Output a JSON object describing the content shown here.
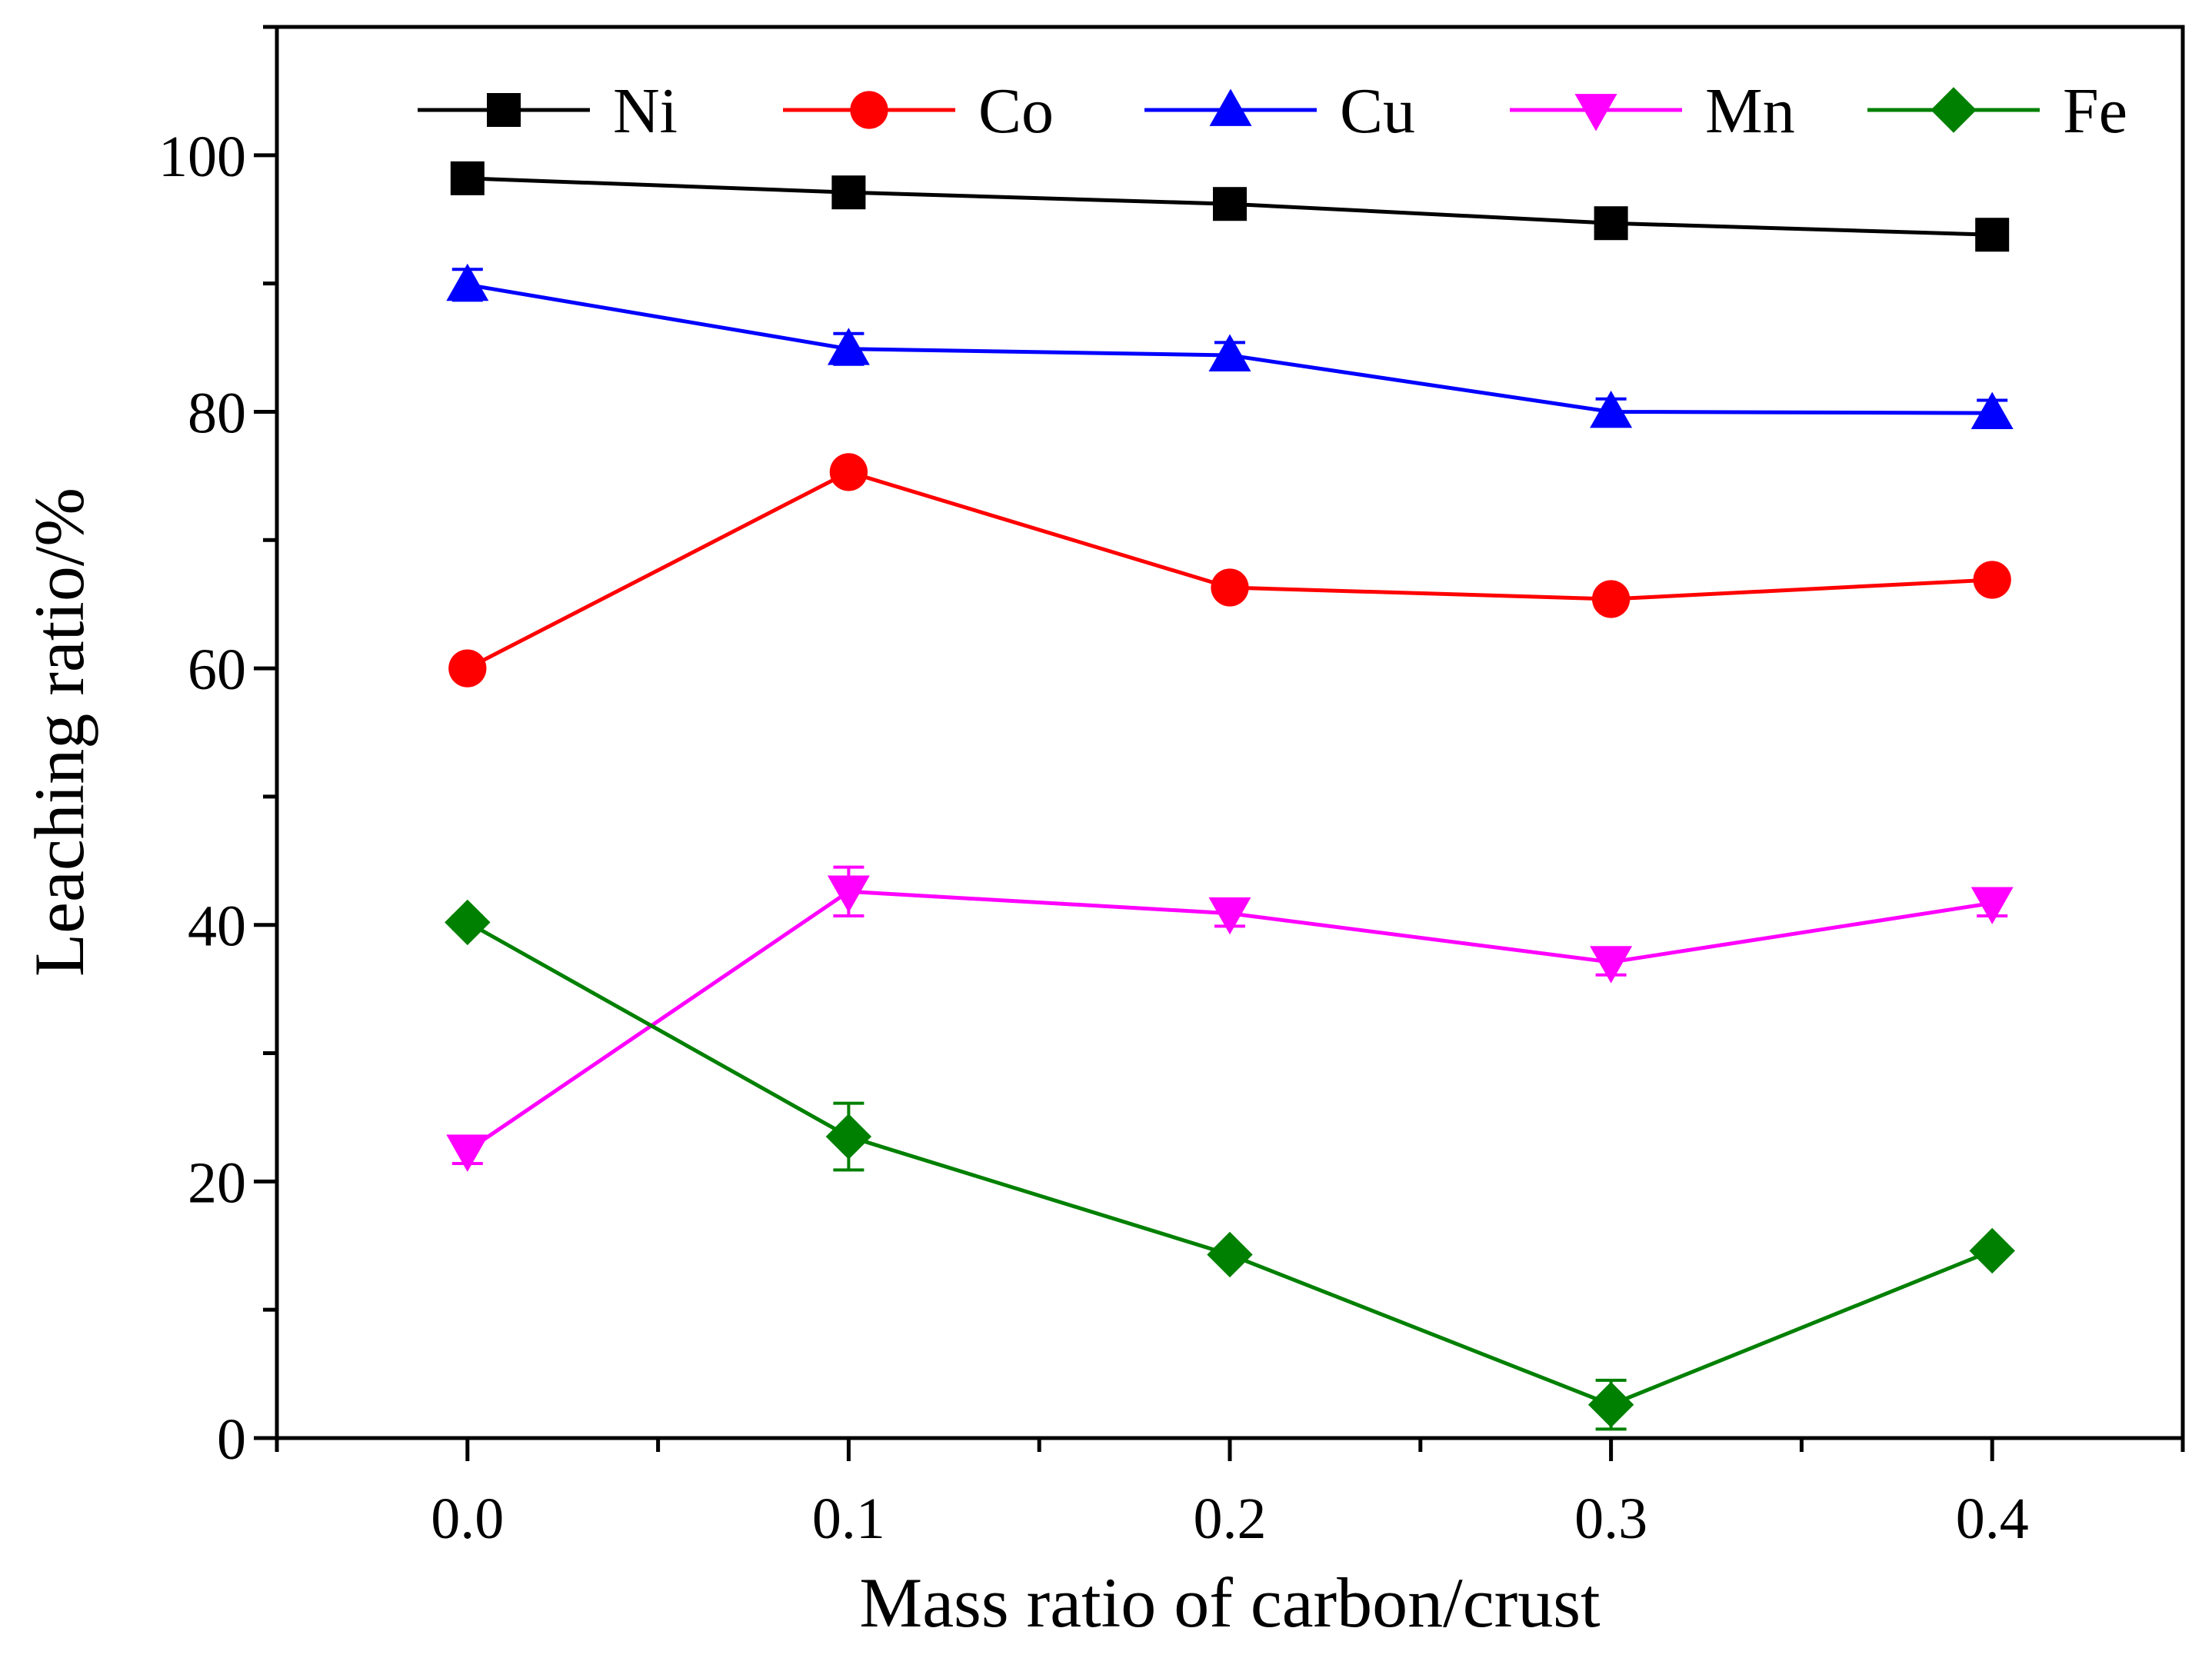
{
  "chart_data": {
    "type": "line",
    "title": "",
    "xlabel": "Mass ratio of carbon/crust",
    "ylabel": "Leaching ratio/%",
    "xlim": [
      -0.05,
      0.45
    ],
    "ylim": [
      0,
      110
    ],
    "x": [
      0.0,
      0.1,
      0.2,
      0.3,
      0.4
    ],
    "xticks": [
      0.0,
      0.1,
      0.2,
      0.3,
      0.4
    ],
    "xtick_labels": [
      "0.0",
      "0.1",
      "0.2",
      "0.3",
      "0.4"
    ],
    "yticks": [
      0,
      20,
      40,
      60,
      80,
      100
    ],
    "ytick_labels": [
      "0",
      "20",
      "40",
      "60",
      "80",
      "100"
    ],
    "grid": false,
    "legend_position": "top",
    "series": [
      {
        "name": "Ni",
        "color": "#000000",
        "marker": "square",
        "values": [
          98.2,
          97.1,
          96.2,
          94.7,
          93.8
        ],
        "errors": [
          0.4,
          0.4,
          0.4,
          0.4,
          0.4
        ]
      },
      {
        "name": "Co",
        "color": "#ff0000",
        "marker": "circle",
        "values": [
          60.0,
          75.3,
          66.3,
          65.4,
          66.9
        ],
        "errors": [
          0.4,
          0.4,
          0.4,
          0.4,
          0.4
        ]
      },
      {
        "name": "Cu",
        "color": "#0000ff",
        "marker": "triangle-up",
        "values": [
          89.9,
          84.9,
          84.4,
          80.0,
          79.9
        ],
        "errors": [
          1.2,
          1.2,
          1.0,
          1.0,
          1.0
        ]
      },
      {
        "name": "Mn",
        "color": "#ff00ff",
        "marker": "triangle-down",
        "values": [
          22.4,
          42.6,
          40.9,
          37.1,
          41.7
        ],
        "errors": [
          1.0,
          1.9,
          1.0,
          1.0,
          1.0
        ]
      },
      {
        "name": "Fe",
        "color": "#008000",
        "marker": "diamond",
        "values": [
          40.2,
          23.5,
          14.3,
          2.6,
          14.6
        ],
        "errors": [
          0.5,
          2.6,
          0.4,
          1.9,
          0.4
        ]
      }
    ]
  }
}
